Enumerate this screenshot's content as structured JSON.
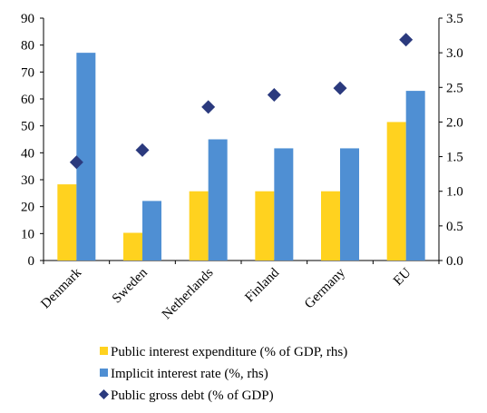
{
  "chart_data": {
    "type": "bar",
    "categories": [
      "Denmark",
      "Sweden",
      "Netherlands",
      "Finland",
      "Germany",
      "EU"
    ],
    "series": [
      {
        "name": "Public interest expenditure (% of GDP, rhs)",
        "kind": "bar",
        "axis": "right",
        "color": "#FFD21F",
        "values": [
          1.1,
          0.4,
          1.0,
          1.0,
          1.0,
          2.0
        ]
      },
      {
        "name": "Implicit interest rate (%, rhs)",
        "kind": "bar",
        "axis": "right",
        "color": "#4F8FD3",
        "values": [
          3.0,
          0.86,
          1.75,
          1.62,
          1.62,
          2.45
        ]
      },
      {
        "name": "Public gross debt (% of GDP)",
        "kind": "marker",
        "axis": "left",
        "color": "#2B3A7E",
        "values": [
          36.5,
          41,
          57,
          61.5,
          64,
          82
        ]
      }
    ],
    "y_left": {
      "min": 0,
      "max": 90,
      "ticks": [
        "0",
        "10",
        "20",
        "30",
        "40",
        "50",
        "60",
        "70",
        "80",
        "90"
      ]
    },
    "y_right": {
      "min": 0,
      "max": 3.5,
      "ticks": [
        "0.0",
        "0.5",
        "1.0",
        "1.5",
        "2.0",
        "2.5",
        "3.0",
        "3.5"
      ]
    },
    "grid": false,
    "legend": "bottom"
  }
}
